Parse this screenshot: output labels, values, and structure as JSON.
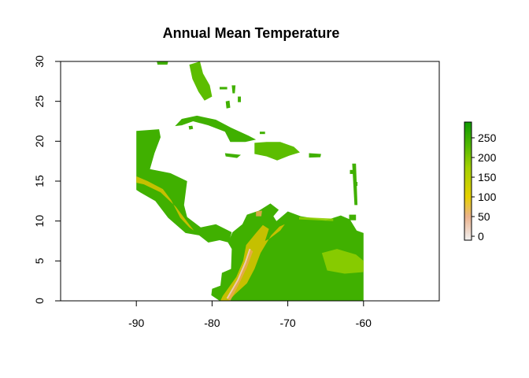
{
  "figure": {
    "title": "Annual Mean Temperature"
  },
  "map": {
    "x_axis": {
      "range": [
        -100,
        -50
      ],
      "ticks": [
        -90,
        -80,
        -70,
        -60
      ],
      "tick_labels": [
        "-90",
        "-80",
        "-70",
        "-60"
      ]
    },
    "y_axis": {
      "range": [
        0,
        30
      ],
      "ticks": [
        0,
        5,
        10,
        15,
        20,
        25,
        30
      ],
      "tick_labels": [
        "0",
        "5",
        "10",
        "15",
        "20",
        "25",
        "30"
      ]
    },
    "raster_extent": {
      "lon": [
        -90,
        -60
      ],
      "lat": [
        0,
        30
      ]
    },
    "colors": {
      "land_main": "#40b000",
      "land_light": "#5cbd00",
      "highland": "#8fce00",
      "mountain_mid": "#d4c200",
      "mountain_high": "#e8a94a",
      "peak": "#edc9b0"
    },
    "features": [
      {
        "name": "Florida",
        "points": [
          [
            -83.0,
            29.6
          ],
          [
            -81.6,
            30.0
          ],
          [
            -81.2,
            28.5
          ],
          [
            -80.3,
            27.0
          ],
          [
            -80.0,
            25.6
          ],
          [
            -81.0,
            25.1
          ],
          [
            -81.8,
            26.2
          ],
          [
            -82.6,
            27.8
          ]
        ],
        "shade": "land_light"
      },
      {
        "name": "Yucatan and Central America",
        "points": [
          [
            -90.0,
            21.3
          ],
          [
            -87.0,
            21.5
          ],
          [
            -86.8,
            20.5
          ],
          [
            -87.6,
            18.5
          ],
          [
            -88.2,
            16.5
          ],
          [
            -85.5,
            16.0
          ],
          [
            -83.3,
            15.0
          ],
          [
            -83.7,
            12.0
          ],
          [
            -83.3,
            10.5
          ],
          [
            -81.5,
            9.2
          ],
          [
            -79.5,
            9.6
          ],
          [
            -77.4,
            8.6
          ],
          [
            -77.8,
            7.3
          ],
          [
            -79.0,
            7.6
          ],
          [
            -80.5,
            7.3
          ],
          [
            -81.7,
            8.2
          ],
          [
            -83.5,
            8.5
          ],
          [
            -85.8,
            10.4
          ],
          [
            -87.5,
            12.5
          ],
          [
            -89.5,
            13.6
          ],
          [
            -90.0,
            13.9
          ]
        ],
        "shade": "land_main"
      },
      {
        "name": "Cuba",
        "points": [
          [
            -84.9,
            21.9
          ],
          [
            -84.0,
            22.8
          ],
          [
            -82.0,
            23.2
          ],
          [
            -79.5,
            22.7
          ],
          [
            -77.5,
            21.7
          ],
          [
            -75.2,
            20.7
          ],
          [
            -74.2,
            20.2
          ],
          [
            -75.6,
            19.9
          ],
          [
            -77.6,
            19.9
          ],
          [
            -78.3,
            21.2
          ],
          [
            -80.5,
            22.0
          ],
          [
            -82.5,
            22.5
          ],
          [
            -84.0,
            22.0
          ]
        ],
        "shade": "land_main"
      },
      {
        "name": "Hispaniola",
        "points": [
          [
            -74.4,
            19.8
          ],
          [
            -72.8,
            19.9
          ],
          [
            -71.0,
            19.9
          ],
          [
            -69.2,
            19.3
          ],
          [
            -68.4,
            18.6
          ],
          [
            -69.8,
            18.2
          ],
          [
            -71.4,
            17.6
          ],
          [
            -72.8,
            18.1
          ],
          [
            -74.4,
            18.4
          ]
        ],
        "shade": "land_light"
      },
      {
        "name": "Jamaica",
        "points": [
          [
            -78.3,
            18.5
          ],
          [
            -76.2,
            18.3
          ],
          [
            -76.7,
            17.9
          ],
          [
            -78.2,
            18.1
          ]
        ],
        "shade": "land_main"
      },
      {
        "name": "Puerto Rico",
        "points": [
          [
            -67.2,
            18.5
          ],
          [
            -65.6,
            18.4
          ],
          [
            -65.7,
            18.0
          ],
          [
            -67.2,
            17.95
          ]
        ],
        "shade": "land_main"
      },
      {
        "name": "South America",
        "points": [
          [
            -77.3,
            8.6
          ],
          [
            -76.0,
            9.6
          ],
          [
            -75.4,
            10.8
          ],
          [
            -73.8,
            11.3
          ],
          [
            -72.3,
            12.2
          ],
          [
            -71.2,
            11.4
          ],
          [
            -71.9,
            10.6
          ],
          [
            -71.5,
            10.0
          ],
          [
            -70.0,
            11.2
          ],
          [
            -68.3,
            10.6
          ],
          [
            -65.0,
            10.1
          ],
          [
            -63.0,
            10.7
          ],
          [
            -61.8,
            10.2
          ],
          [
            -60.9,
            8.8
          ],
          [
            -60.0,
            8.5
          ],
          [
            -60.0,
            0.0
          ],
          [
            -79.0,
            0.0
          ],
          [
            -80.1,
            0.7
          ],
          [
            -80.0,
            1.5
          ],
          [
            -78.9,
            1.9
          ],
          [
            -78.7,
            3.5
          ],
          [
            -77.5,
            4.0
          ],
          [
            -77.4,
            6.5
          ],
          [
            -77.9,
            7.3
          ]
        ],
        "shade": "land_main"
      }
    ],
    "islands": [
      {
        "name": "Isla Juventud",
        "points": [
          [
            -83.1,
            21.9
          ],
          [
            -82.6,
            21.95
          ],
          [
            -82.5,
            21.55
          ],
          [
            -83.0,
            21.45
          ]
        ]
      },
      {
        "name": "Bahamas Andros",
        "points": [
          [
            -78.2,
            25.0
          ],
          [
            -77.7,
            25.1
          ],
          [
            -77.6,
            24.2
          ],
          [
            -78.1,
            24.1
          ]
        ]
      },
      {
        "name": "Bahamas Abaco",
        "points": [
          [
            -77.4,
            27.0
          ],
          [
            -76.9,
            27.0
          ],
          [
            -77.0,
            26.0
          ],
          [
            -77.3,
            26.0
          ]
        ]
      },
      {
        "name": "Bahamas Eleuthera",
        "points": [
          [
            -76.6,
            25.6
          ],
          [
            -76.2,
            25.6
          ],
          [
            -76.2,
            24.9
          ],
          [
            -76.6,
            24.9
          ]
        ]
      },
      {
        "name": "Bahamas Grand",
        "points": [
          [
            -79.0,
            26.8
          ],
          [
            -78.0,
            26.8
          ],
          [
            -78.0,
            26.5
          ],
          [
            -79.0,
            26.5
          ]
        ]
      },
      {
        "name": "Bahamas Inagua",
        "points": [
          [
            -73.7,
            21.2
          ],
          [
            -73.0,
            21.2
          ],
          [
            -73.0,
            20.9
          ],
          [
            -73.7,
            20.9
          ]
        ]
      },
      {
        "name": "Trinidad",
        "points": [
          [
            -61.9,
            10.8
          ],
          [
            -61.0,
            10.8
          ],
          [
            -61.0,
            10.1
          ],
          [
            -61.9,
            10.1
          ]
        ]
      },
      {
        "name": "Guadeloupe",
        "points": [
          [
            -61.8,
            16.4
          ],
          [
            -61.2,
            16.4
          ],
          [
            -61.2,
            15.9
          ],
          [
            -61.8,
            15.9
          ]
        ]
      },
      {
        "name": "Martinique",
        "points": [
          [
            -61.2,
            14.9
          ],
          [
            -60.8,
            14.9
          ],
          [
            -60.8,
            14.4
          ],
          [
            -61.2,
            14.4
          ]
        ]
      },
      {
        "name": "Lesser Antilles chain",
        "points": [
          [
            -61.5,
            17.2
          ],
          [
            -61.0,
            17.2
          ],
          [
            -60.8,
            12.0
          ],
          [
            -61.2,
            12.0
          ]
        ]
      },
      {
        "name": "Panhandle Florida",
        "points": [
          [
            -87.3,
            30.0
          ],
          [
            -85.8,
            30.0
          ],
          [
            -85.9,
            29.6
          ],
          [
            -87.2,
            29.6
          ]
        ]
      }
    ],
    "mountains": [
      {
        "name": "Northern Andes",
        "points": [
          [
            -78.6,
            0.6
          ],
          [
            -76.8,
            3.0
          ],
          [
            -75.9,
            5.0
          ],
          [
            -75.5,
            7.0
          ],
          [
            -74.2,
            8.5
          ],
          [
            -73.3,
            9.5
          ],
          [
            -72.5,
            9.0
          ],
          [
            -73.0,
            7.5
          ],
          [
            -72.4,
            7.8
          ],
          [
            -71.0,
            8.8
          ],
          [
            -70.4,
            9.6
          ],
          [
            -71.1,
            9.3
          ],
          [
            -72.2,
            8.2
          ],
          [
            -73.6,
            6.0
          ],
          [
            -74.4,
            4.0
          ],
          [
            -75.4,
            2.2
          ],
          [
            -77.0,
            0.8
          ],
          [
            -77.8,
            0.0
          ],
          [
            -78.9,
            0.0
          ]
        ],
        "shade": "mountain_mid"
      },
      {
        "name": "Andes Peaks",
        "points": [
          [
            -78.0,
            0.3
          ],
          [
            -76.6,
            2.6
          ],
          [
            -75.6,
            4.8
          ],
          [
            -75.0,
            6.5
          ],
          [
            -74.6,
            6.2
          ],
          [
            -75.4,
            4.2
          ],
          [
            -76.6,
            1.8
          ],
          [
            -77.6,
            0.0
          ]
        ],
        "shade": "mountain_high"
      },
      {
        "name": "Central American Highlands",
        "points": [
          [
            -90.0,
            15.6
          ],
          [
            -88.5,
            15.0
          ],
          [
            -86.5,
            14.0
          ],
          [
            -85.4,
            12.6
          ],
          [
            -84.2,
            10.4
          ],
          [
            -83.0,
            9.2
          ],
          [
            -82.4,
            8.8
          ],
          [
            -83.2,
            9.8
          ],
          [
            -84.8,
            11.8
          ],
          [
            -86.8,
            13.6
          ],
          [
            -89.0,
            14.6
          ],
          [
            -90.0,
            14.8
          ]
        ],
        "shade": "mountain_mid"
      },
      {
        "name": "Sierra Nevada",
        "points": [
          [
            -74.2,
            11.2
          ],
          [
            -73.4,
            11.3
          ],
          [
            -73.5,
            10.6
          ],
          [
            -74.2,
            10.6
          ]
        ],
        "shade": "mountain_high"
      },
      {
        "name": "Venezuelan Coast Range",
        "points": [
          [
            -68.5,
            10.5
          ],
          [
            -64.0,
            10.3
          ],
          [
            -64.0,
            10.0
          ],
          [
            -68.5,
            10.2
          ]
        ],
        "shade": "highland"
      },
      {
        "name": "Guiana Highlands",
        "points": [
          [
            -65.5,
            6.0
          ],
          [
            -63.5,
            6.5
          ],
          [
            -61.0,
            5.8
          ],
          [
            -60.0,
            5.0
          ],
          [
            -60.0,
            3.6
          ],
          [
            -62.5,
            3.4
          ],
          [
            -64.8,
            3.8
          ]
        ],
        "shade": "highland"
      }
    ]
  },
  "legend": {
    "range": [
      -10,
      290
    ],
    "ticks": [
      0,
      50,
      100,
      150,
      200,
      250
    ],
    "tick_labels": [
      "0",
      "50",
      "100",
      "150",
      "200",
      "250"
    ],
    "gradient_stops": [
      {
        "value": -10,
        "color": "#f0f0f0"
      },
      {
        "value": 50,
        "color": "#ebb28c"
      },
      {
        "value": 100,
        "color": "#e6d000"
      },
      {
        "value": 175,
        "color": "#a3d000"
      },
      {
        "value": 230,
        "color": "#52b800"
      },
      {
        "value": 290,
        "color": "#0f9900"
      }
    ]
  }
}
